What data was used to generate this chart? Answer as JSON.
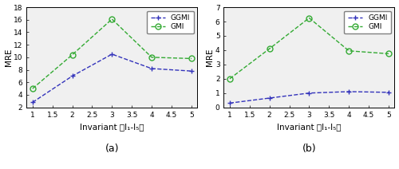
{
  "x": [
    1,
    2,
    3,
    4,
    5
  ],
  "subplot_a": {
    "GGMI": [
      2.8,
      7.0,
      10.5,
      8.2,
      7.8
    ],
    "GMI": [
      5.0,
      10.4,
      16.1,
      10.0,
      9.8
    ]
  },
  "subplot_b": {
    "GGMI": [
      0.3,
      0.65,
      1.0,
      1.1,
      1.05
    ],
    "GMI": [
      2.0,
      4.1,
      6.25,
      3.95,
      3.75
    ]
  },
  "ylim_a": [
    2,
    18
  ],
  "yticks_a": [
    2,
    4,
    6,
    8,
    10,
    12,
    14,
    16,
    18
  ],
  "ylim_b": [
    0,
    7
  ],
  "yticks_b": [
    0,
    1,
    2,
    3,
    4,
    5,
    6,
    7
  ],
  "xlim": [
    0.85,
    5.15
  ],
  "xticks": [
    1,
    1.5,
    2,
    2.5,
    3,
    3.5,
    4,
    4.5,
    5
  ],
  "xtick_labels": [
    "1",
    "1.5",
    "2",
    "2.5",
    "3",
    "3.5",
    "4",
    "4.5",
    "5"
  ],
  "xlabel": "Invariant （I₁-I₅）",
  "ylabel": "MRE",
  "label_GGMI": "GGMI",
  "label_GMI": "GMI",
  "color_GGMI": "#3333bb",
  "color_GMI": "#33aa33",
  "caption_a": "(a)",
  "caption_b": "(b)",
  "bg_color": "#f0f0f0",
  "linestyle": "--",
  "marker_GGMI": "+",
  "marker_GMI": "o",
  "markersize_GGMI": 5,
  "markersize_GMI": 5,
  "linewidth": 1.0,
  "tick_labelsize": 6.5,
  "axis_labelsize": 7.5,
  "legend_fontsize": 6.5,
  "caption_fontsize": 9
}
